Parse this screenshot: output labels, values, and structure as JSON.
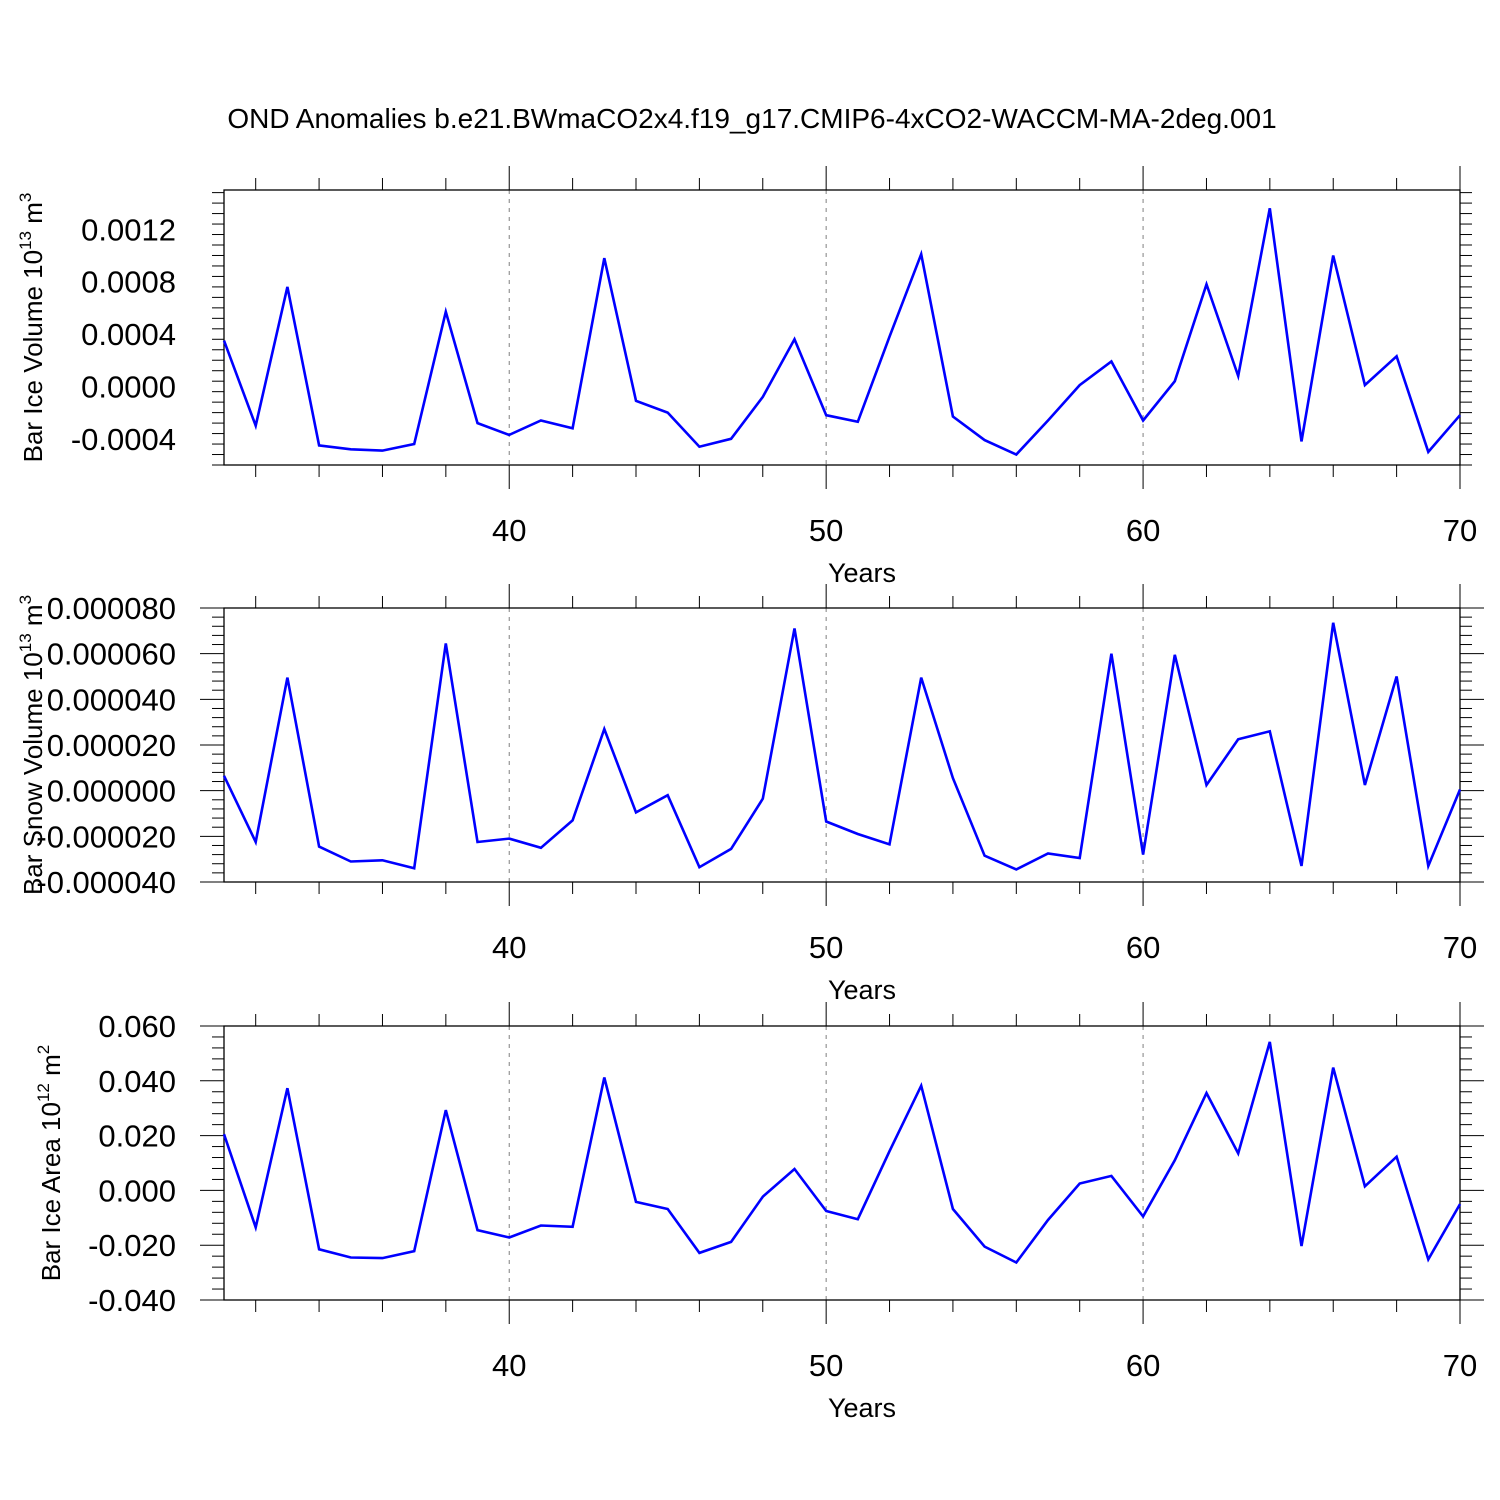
{
  "title": "OND Anomalies b.e21.BWmaCO2x4.f19_g17.CMIP6-4xCO2-WACCM-MA-2deg.001",
  "colors": {
    "line": "#0000ff",
    "axes": "#000000",
    "grid": "#808080",
    "background": "#ffffff"
  },
  "chart_data": [
    {
      "type": "line",
      "xlabel": "Years",
      "ylabel": "Bar Ice Volume 10",
      "ylabel_sup": "13",
      "ylabel_unit": " m",
      "ylabel_unit_sup": "3",
      "xlim": [
        31,
        70
      ],
      "ylim": [
        -0.0006,
        0.0015
      ],
      "xticks": [
        40,
        50,
        60,
        70
      ],
      "xtick_labels": [
        "40",
        "50",
        "60",
        "70"
      ],
      "yticks": [
        -0.0004,
        0.0,
        0.0004,
        0.0008,
        0.0012
      ],
      "ytick_labels": [
        "-0.0004",
        "0.0000",
        "0.0004",
        "0.0008",
        "0.0012"
      ],
      "grid": "vertical dashed at major x ticks",
      "series": [
        {
          "x": [
            31,
            32,
            33,
            34,
            35,
            36,
            37,
            38,
            39,
            40,
            41,
            42,
            43,
            44,
            45,
            46,
            47,
            48,
            49,
            50,
            51,
            52,
            53,
            54,
            55,
            56,
            57,
            58,
            59,
            60,
            61,
            62,
            63,
            64,
            65,
            66,
            67,
            68,
            69,
            70
          ],
          "values": [
            0.00035,
            -0.0003,
            0.00076,
            -0.00045,
            -0.00048,
            -0.00049,
            -0.00044,
            0.00057,
            -0.00028,
            -0.00037,
            -0.00026,
            -0.00032,
            0.00098,
            -0.00011,
            -0.0002,
            -0.00046,
            -0.0004,
            -8e-05,
            0.00036,
            -0.00022,
            -0.00027,
            0.00038,
            0.00101,
            -0.00023,
            -0.00041,
            -0.00052,
            -0.00026,
            1e-05,
            0.00019,
            -0.00026,
            4e-05,
            0.00078,
            8e-05,
            0.00136,
            -0.00042,
            0.001,
            1e-05,
            0.00023,
            -0.0005,
            -0.00022
          ]
        }
      ]
    },
    {
      "type": "line",
      "xlabel": "Years",
      "ylabel": "Bar Snow Volume 10",
      "ylabel_sup": "13",
      "ylabel_unit": " m",
      "ylabel_unit_sup": "3",
      "xlim": [
        31,
        70
      ],
      "ylim": [
        -4e-05,
        8e-05
      ],
      "xticks": [
        40,
        50,
        60,
        70
      ],
      "xtick_labels": [
        "40",
        "50",
        "60",
        "70"
      ],
      "yticks": [
        -4e-05,
        -2e-05,
        0.0,
        2e-05,
        4e-05,
        6e-05,
        8e-05
      ],
      "ytick_labels": [
        "-0.000040",
        "-0.000020",
        "0.000000",
        "0.000020",
        "0.000040",
        "0.000060",
        "0.000080"
      ],
      "grid": "vertical dashed at major x ticks",
      "series": [
        {
          "x": [
            31,
            32,
            33,
            34,
            35,
            36,
            37,
            38,
            39,
            40,
            41,
            42,
            43,
            44,
            45,
            46,
            47,
            48,
            49,
            50,
            51,
            52,
            53,
            54,
            55,
            56,
            57,
            58,
            59,
            60,
            61,
            62,
            63,
            64,
            65,
            66,
            67,
            68,
            69,
            70
          ],
          "values": [
            6.5e-06,
            -2.25e-05,
            4.95e-05,
            -2.45e-05,
            -3.1e-05,
            -3.05e-05,
            -3.4e-05,
            6.45e-05,
            -2.25e-05,
            -2.1e-05,
            -2.5e-05,
            -1.3e-05,
            2.7e-05,
            -9.5e-06,
            -2e-06,
            -3.35e-05,
            -2.55e-05,
            -3.5e-06,
            7.1e-05,
            -1.35e-05,
            -1.9e-05,
            -2.35e-05,
            4.95e-05,
            5.5e-06,
            -2.85e-05,
            -3.45e-05,
            -2.75e-05,
            -2.95e-05,
            6e-05,
            -2.8e-05,
            5.95e-05,
            2.5e-06,
            2.25e-05,
            2.6e-05,
            -3.3e-05,
            7.35e-05,
            2.5e-06,
            5e-05,
            -3.3e-05,
            5e-07
          ]
        }
      ]
    },
    {
      "type": "line",
      "xlabel": "Years",
      "ylabel": "Bar Ice Area 10",
      "ylabel_sup": "12",
      "ylabel_unit": " m",
      "ylabel_unit_sup": "2",
      "xlim": [
        31,
        70
      ],
      "ylim": [
        -0.04,
        0.06
      ],
      "xticks": [
        40,
        50,
        60,
        70
      ],
      "xtick_labels": [
        "40",
        "50",
        "60",
        "70"
      ],
      "yticks": [
        -0.04,
        -0.02,
        0.0,
        0.02,
        0.04,
        0.06
      ],
      "ytick_labels": [
        "-0.040",
        "-0.020",
        "0.000",
        "0.020",
        "0.040",
        "0.060"
      ],
      "grid": "vertical dashed at major x ticks",
      "series": [
        {
          "x": [
            31,
            32,
            33,
            34,
            35,
            36,
            37,
            38,
            39,
            40,
            41,
            42,
            43,
            44,
            45,
            46,
            47,
            48,
            49,
            50,
            51,
            52,
            53,
            54,
            55,
            56,
            57,
            58,
            59,
            60,
            61,
            62,
            63,
            64,
            65,
            66,
            67,
            68,
            69,
            70
          ],
          "values": [
            0.0205,
            -0.0135,
            0.0373,
            -0.0215,
            -0.0245,
            -0.0247,
            -0.0222,
            0.0293,
            -0.0145,
            -0.0172,
            -0.0128,
            -0.0133,
            0.0412,
            -0.0042,
            -0.0068,
            -0.0228,
            -0.0188,
            -0.0023,
            0.0078,
            -0.0075,
            -0.0105,
            0.0143,
            0.0382,
            -0.0068,
            -0.0205,
            -0.0263,
            -0.0108,
            0.0025,
            0.0053,
            -0.0095,
            0.011,
            0.0355,
            0.0135,
            0.0542,
            -0.0203,
            0.0448,
            0.0015,
            0.0123,
            -0.0252,
            -0.005
          ]
        }
      ]
    }
  ]
}
